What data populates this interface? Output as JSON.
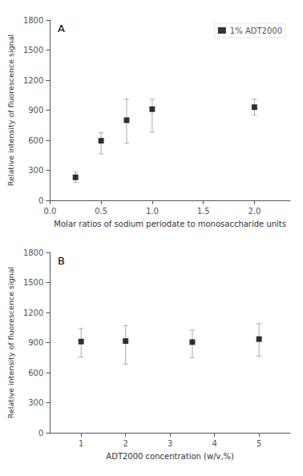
{
  "chart_data": [
    {
      "type": "scatter",
      "annotation": "A",
      "xlabel": "Molar ratios of sodium periodate to monosaccharide units",
      "ylabel": "Relative intensity of fluorescence signal",
      "x": [
        0.25,
        0.5,
        0.75,
        1.0,
        2.0
      ],
      "series": [
        {
          "name": "1% ADT2000",
          "color": "black",
          "marker": "square",
          "values": [
            230,
            595,
            800,
            910,
            930
          ],
          "yerr_lo": [
            50,
            130,
            230,
            230,
            80
          ],
          "yerr_hi": [
            50,
            80,
            210,
            100,
            80
          ]
        }
      ],
      "xlim": [
        0.0,
        2.35
      ],
      "xticks": [
        {
          "value": 0.0,
          "label": "0.0"
        },
        0.5,
        {
          "value": 1.0,
          "label": "1.0"
        },
        1.5,
        {
          "value": 2.0,
          "label": "2.0"
        }
      ],
      "ylim": [
        0,
        1800
      ],
      "yticks": [
        0,
        300,
        600,
        900,
        1200,
        1500,
        1800
      ],
      "legend": "upper right",
      "grid": false
    },
    {
      "type": "scatter",
      "annotation": "B",
      "xlabel": "ADT2000 concentration (w/v,%)",
      "ylabel": "Relative intensity of fluorescence signal",
      "x": [
        1,
        2,
        3.5,
        5
      ],
      "series": [
        {
          "color": "black",
          "marker": "square",
          "values": [
            910,
            915,
            905,
            935
          ],
          "yerr_lo": [
            155,
            230,
            155,
            170
          ],
          "yerr_hi": [
            130,
            155,
            120,
            155
          ]
        }
      ],
      "xlim": [
        0.3,
        5.7
      ],
      "xticks": [
        1,
        2,
        3,
        4,
        5
      ],
      "ylim": [
        0,
        1800
      ],
      "yticks": [
        0,
        300,
        600,
        900,
        1200,
        1500,
        1800
      ],
      "grid": false
    }
  ]
}
